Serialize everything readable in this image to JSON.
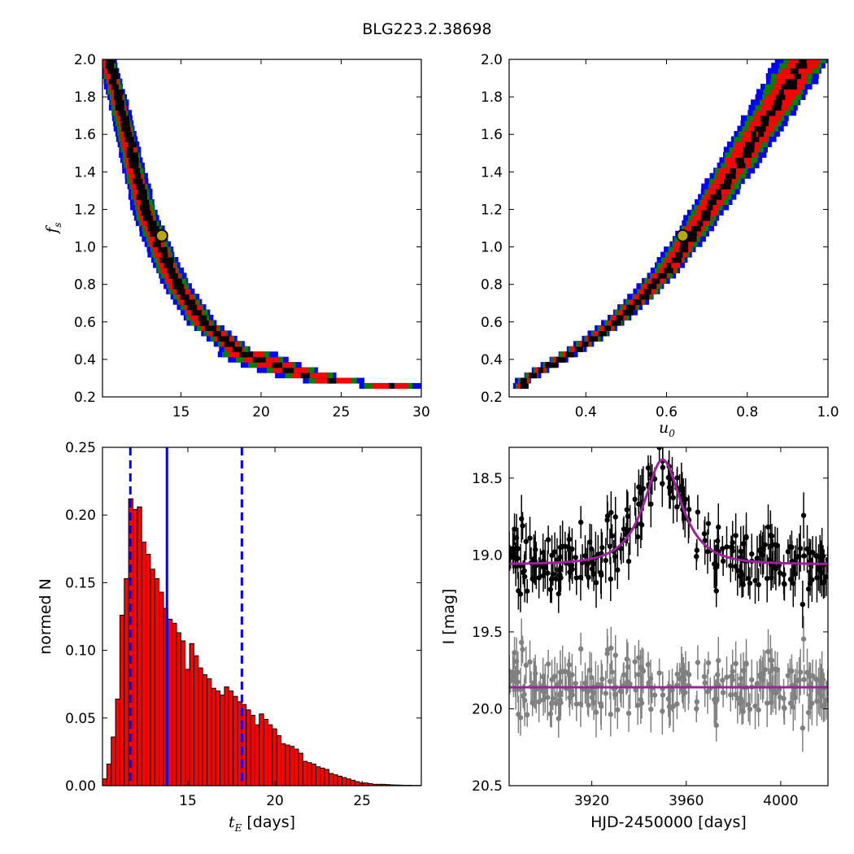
{
  "figure": {
    "title": "BLG223.2.38698"
  },
  "chart_data": [
    {
      "id": "ts-vs-tE",
      "type": "heatmap",
      "xlabel": "",
      "ylabel_main": "f",
      "ylabel_sub": "s",
      "xlim": [
        10.1,
        30
      ],
      "ylim": [
        0.2,
        2.0
      ],
      "xticks": [
        15,
        20,
        25,
        30
      ],
      "yticks": [
        0.2,
        0.4,
        0.6,
        0.8,
        1.0,
        1.2,
        1.4,
        1.6,
        1.8,
        2.0
      ],
      "best_fit": {
        "x": 13.8,
        "y": 1.06
      },
      "colors": {
        "sigma3": "#0000ff",
        "sigma2": "#008000",
        "sigma1": "#ff0000",
        "core": "#000000"
      },
      "ridge": [
        [
          10.4,
          2.0
        ],
        [
          11.0,
          1.8
        ],
        [
          11.6,
          1.6
        ],
        [
          12.1,
          1.4
        ],
        [
          12.7,
          1.2
        ],
        [
          13.6,
          1.0
        ],
        [
          14.7,
          0.8
        ],
        [
          16.3,
          0.6
        ],
        [
          18.5,
          0.45
        ],
        [
          21.0,
          0.36
        ],
        [
          24.0,
          0.29
        ],
        [
          28.0,
          0.27
        ]
      ]
    },
    {
      "id": "fs-vs-u0",
      "type": "heatmap",
      "xlabel_main": "u",
      "xlabel_sub": "0",
      "ylabel": "",
      "xlim": [
        0.21,
        1.0
      ],
      "ylim": [
        0.2,
        2.0
      ],
      "xticks": [
        0.4,
        0.6,
        0.8,
        1.0
      ],
      "yticks": [
        0.2,
        0.4,
        0.6,
        0.8,
        1.0,
        1.2,
        1.4,
        1.6,
        1.8,
        2.0
      ],
      "best_fit": {
        "x": 0.64,
        "y": 1.06
      },
      "colors": {
        "sigma3": "#0000ff",
        "sigma2": "#008000",
        "sigma1": "#ff0000",
        "core": "#000000"
      },
      "ridge": [
        [
          0.24,
          0.28
        ],
        [
          0.3,
          0.36
        ],
        [
          0.38,
          0.46
        ],
        [
          0.46,
          0.58
        ],
        [
          0.54,
          0.74
        ],
        [
          0.6,
          0.88
        ],
        [
          0.66,
          1.06
        ],
        [
          0.72,
          1.26
        ],
        [
          0.78,
          1.46
        ],
        [
          0.84,
          1.66
        ],
        [
          0.9,
          1.86
        ],
        [
          0.94,
          2.0
        ]
      ]
    },
    {
      "id": "tE-histogram",
      "type": "bar",
      "xlabel_main": "t",
      "xlabel_sub": "E",
      "xlabel_rest": " [days]",
      "ylabel": "normed N",
      "xlim": [
        10.1,
        28.4
      ],
      "ylim": [
        0,
        0.25
      ],
      "xticks": [
        15,
        20,
        25
      ],
      "yticks": [
        0.0,
        0.05,
        0.1,
        0.15,
        0.2,
        0.25
      ],
      "ytick_labels": [
        "0.00",
        "0.05",
        "0.10",
        "0.15",
        "0.20",
        "0.25"
      ],
      "bin_start": 10.1,
      "bin_width": 0.25,
      "values": [
        0.005,
        0.016,
        0.036,
        0.064,
        0.126,
        0.153,
        0.212,
        0.204,
        0.206,
        0.18,
        0.171,
        0.16,
        0.153,
        0.143,
        0.131,
        0.123,
        0.12,
        0.113,
        0.107,
        0.086,
        0.105,
        0.096,
        0.087,
        0.082,
        0.079,
        0.072,
        0.07,
        0.067,
        0.073,
        0.07,
        0.066,
        0.062,
        0.06,
        0.056,
        0.052,
        0.045,
        0.053,
        0.049,
        0.045,
        0.042,
        0.037,
        0.031,
        0.03,
        0.029,
        0.027,
        0.024,
        0.018,
        0.017,
        0.016,
        0.014,
        0.013,
        0.012,
        0.009,
        0.008,
        0.007,
        0.006,
        0.005,
        0.004,
        0.003,
        0.002,
        0.002,
        0.0015,
        0.001,
        0.001,
        0.001,
        0.0008,
        0.0006,
        0.0005,
        0.0004,
        0.0003,
        0.0003,
        0.0002,
        0.0002
      ],
      "bar_color": "#ff0000",
      "median": 13.8,
      "interval": [
        11.7,
        18.1
      ],
      "line_color": "#0000ff"
    },
    {
      "id": "lightcurve",
      "type": "scatter",
      "xlabel": "HJD-2450000 [days]",
      "ylabel": "I [mag]",
      "xlim": [
        3885,
        4020
      ],
      "ylim": [
        20.5,
        18.3
      ],
      "xticks": [
        3920,
        3960,
        4000
      ],
      "yticks": [
        18.5,
        19.0,
        19.5,
        20.0,
        20.5
      ],
      "ytick_labels": [
        "18.5",
        "19.0",
        "19.5",
        "20.0",
        "20.5"
      ],
      "model": {
        "baseline": 19.06,
        "peak": 18.38,
        "t0": 3950,
        "tE": 13.8,
        "u0": 0.64,
        "color": "#a020a0"
      },
      "residual": {
        "baseline": 19.86,
        "points_color": "#808080"
      },
      "data_color": "#000000",
      "n_points": 260,
      "data_scatter": 0.11,
      "error_bar": 0.12
    }
  ]
}
